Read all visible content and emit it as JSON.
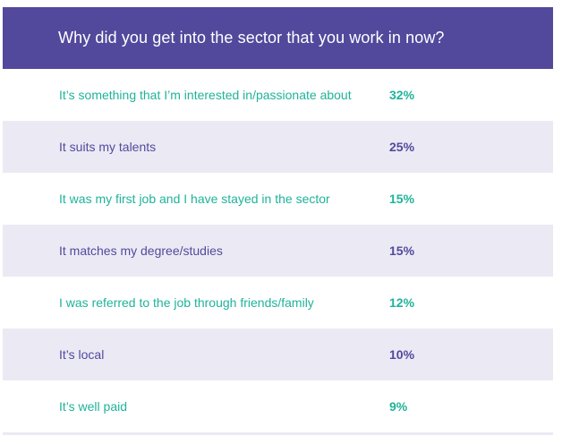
{
  "chart_data": {
    "type": "table",
    "title": "Why did you get into the sector that you work in now?",
    "rows": [
      {
        "label": "It’s something that I’m interested in/passionate about",
        "value_text": "32%",
        "value": 32
      },
      {
        "label": "It suits my talents",
        "value_text": "25%",
        "value": 25
      },
      {
        "label": "It was my first job and I have stayed in the sector",
        "value_text": "15%",
        "value": 15
      },
      {
        "label": "It matches my degree/studies",
        "value_text": "15%",
        "value": 15
      },
      {
        "label": "I was referred to the job through friends/family",
        "value_text": "12%",
        "value": 12
      },
      {
        "label": "It’s local",
        "value_text": "10%",
        "value": 10
      },
      {
        "label": "It’s well paid",
        "value_text": "9%",
        "value": 9
      }
    ]
  },
  "colors": {
    "header_bg": "#52499c",
    "header_text": "#ffffff",
    "odd_row_text": "#1fb39a",
    "even_row_text": "#52499c",
    "even_row_bg": "#ebeaf4"
  }
}
